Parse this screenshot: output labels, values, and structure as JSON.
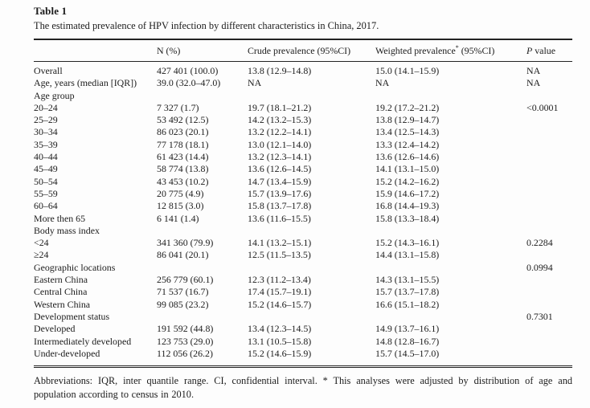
{
  "table": {
    "label": "Table 1",
    "caption": "The estimated prevalence of HPV infection by different characteristics in China, 2017.",
    "header": {
      "n": "N (%)",
      "crude": "Crude prevalence (95%CI)",
      "weighted_text": "Weighted prevalence",
      "weighted_sup": "*",
      "weighted_ci": " (95%CI)",
      "p_symbol": "P",
      "p_text": " value"
    },
    "rows": [
      [
        "Overall",
        "427 401 (100.0)",
        "13.8 (12.9–14.8)",
        "15.0 (14.1–15.9)",
        "NA"
      ],
      [
        "Age, years (median [IQR])",
        "39.0 (32.0–47.0)",
        "NA",
        "NA",
        "NA"
      ],
      [
        "Age group",
        "",
        "",
        "",
        ""
      ],
      [
        "20–24",
        "7 327 (1.7)",
        "19.7 (18.1–21.2)",
        "19.2 (17.2–21.2)",
        "<0.0001"
      ],
      [
        "25–29",
        "53 492 (12.5)",
        "14.2 (13.2–15.3)",
        "13.8 (12.9–14.7)",
        ""
      ],
      [
        "30–34",
        "86 023 (20.1)",
        "13.2 (12.2–14.1)",
        "13.4 (12.5–14.3)",
        ""
      ],
      [
        "35–39",
        "77 178 (18.1)",
        "13.0 (12.1–14.0)",
        "13.3 (12.4–14.2)",
        ""
      ],
      [
        "40–44",
        "61 423 (14.4)",
        "13.2 (12.3–14.1)",
        "13.6 (12.6–14.6)",
        ""
      ],
      [
        "45–49",
        "58 774 (13.8)",
        "13.6 (12.6–14.5)",
        "14.1 (13.1–15.0)",
        ""
      ],
      [
        "50–54",
        "43 453 (10.2)",
        "14.7 (13.4–15.9)",
        "15.2 (14.2–16.2)",
        ""
      ],
      [
        "55–59",
        "20 775 (4.9)",
        "15.7 (13.9–17.6)",
        "15.9 (14.6–17.2)",
        ""
      ],
      [
        "60–64",
        "12 815 (3.0)",
        "15.8 (13.7–17.8)",
        "16.8 (14.4–19.3)",
        ""
      ],
      [
        "More then 65",
        "6 141 (1.4)",
        "13.6 (11.6–15.5)",
        "15.8 (13.3–18.4)",
        ""
      ],
      [
        "Body mass index",
        "",
        "",
        "",
        ""
      ],
      [
        "<24",
        "341 360 (79.9)",
        "14.1 (13.2–15.1)",
        "15.2 (14.3–16.1)",
        "0.2284"
      ],
      [
        "≥24",
        "86 041 (20.1)",
        "12.5 (11.5–13.5)",
        "14.4 (13.1–15.8)",
        ""
      ],
      [
        "Geographic locations",
        "",
        "",
        "",
        "0.0994"
      ],
      [
        "Eastern China",
        "256 779 (60.1)",
        "12.3 (11.2–13.4)",
        "14.3 (13.1–15.5)",
        ""
      ],
      [
        "Central China",
        "71 537 (16.7)",
        "17.4 (15.7–19.1)",
        "15.7 (13.7–17.8)",
        ""
      ],
      [
        "Western China",
        "99 085 (23.2)",
        "15.2 (14.6–15.7)",
        "16.6 (15.1–18.2)",
        ""
      ],
      [
        "Development status",
        "",
        "",
        "",
        "0.7301"
      ],
      [
        "Developed",
        "191 592 (44.8)",
        "13.4 (12.3–14.5)",
        "14.9 (13.7–16.1)",
        ""
      ],
      [
        "Intermediately developed",
        "123 753 (29.0)",
        "13.1 (10.5–15.8)",
        "14.8 (12.8–16.7)",
        ""
      ],
      [
        "Under-developed",
        "112 056 (26.2)",
        "15.2 (14.6–15.9)",
        "15.7 (14.5–17.0)",
        ""
      ]
    ],
    "footnote": "Abbreviations: IQR, inter quantile range. CI, confidential interval. * This analyses were adjusted by distribution of age and population according to census in 2010."
  }
}
